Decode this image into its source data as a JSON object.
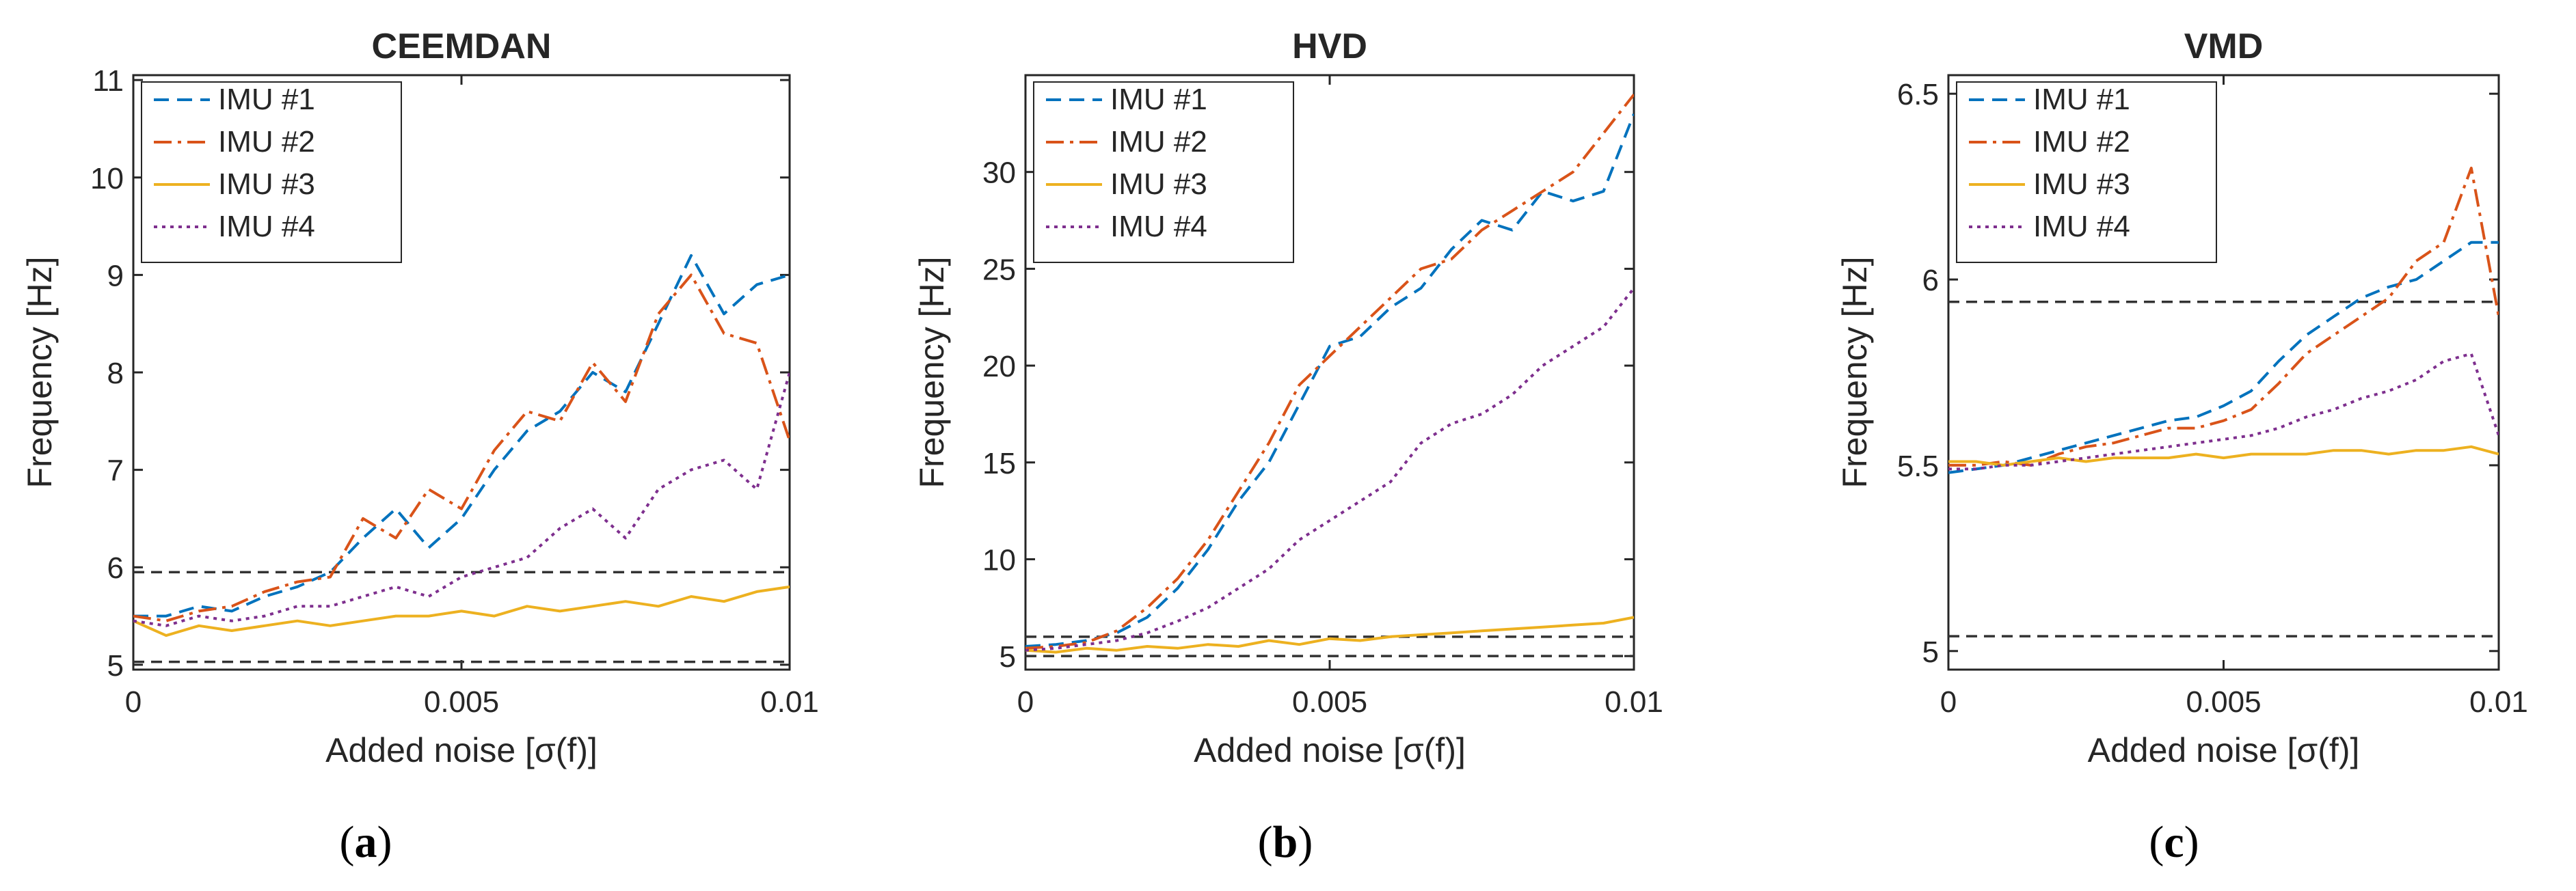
{
  "figure": {
    "captions": [
      {
        "open": "(",
        "letter": "a",
        "close": ")"
      },
      {
        "open": "(",
        "letter": "b",
        "close": ")"
      },
      {
        "open": "(",
        "letter": "c",
        "close": ")"
      }
    ]
  },
  "series_styles": [
    {
      "name": "IMU #1",
      "color": "#0072BD",
      "dash": "dashed"
    },
    {
      "name": "IMU #2",
      "color": "#D95319",
      "dash": "dashdot"
    },
    {
      "name": "IMU #3",
      "color": "#EDB120",
      "dash": "solid"
    },
    {
      "name": "IMU #4",
      "color": "#7E2F8E",
      "dash": "dotted"
    }
  ],
  "chart_data": [
    {
      "type": "line",
      "title": "CEEMDAN",
      "xlabel": "Added noise [σ(f)]",
      "ylabel": "Frequency [Hz]",
      "xlim": [
        0,
        0.01
      ],
      "ylim": [
        4.95,
        11.05
      ],
      "xticks": [
        0,
        0.005,
        0.01
      ],
      "xtick_labels": [
        "0",
        "0.005",
        "0.01"
      ],
      "yticks": [
        5,
        6,
        7,
        8,
        9,
        10,
        11
      ],
      "ytick_labels": [
        "5",
        "6",
        "7",
        "8",
        "9",
        "10",
        "11"
      ],
      "legend": "top-left",
      "grid": false,
      "reference_lines": [
        5.95,
        5.03
      ],
      "series": [
        {
          "name": "IMU #1",
          "x": [
            0,
            0.0005,
            0.001,
            0.0015,
            0.002,
            0.0025,
            0.003,
            0.0035,
            0.004,
            0.0045,
            0.005,
            0.0055,
            0.006,
            0.0065,
            0.007,
            0.0075,
            0.008,
            0.0085,
            0.009,
            0.0095,
            0.01
          ],
          "y": [
            5.5,
            5.5,
            5.6,
            5.55,
            5.7,
            5.8,
            5.95,
            6.3,
            6.6,
            6.2,
            6.5,
            7.0,
            7.4,
            7.6,
            8.0,
            7.8,
            8.5,
            9.2,
            8.6,
            8.9,
            9.0
          ]
        },
        {
          "name": "IMU #2",
          "x": [
            0,
            0.0005,
            0.001,
            0.0015,
            0.002,
            0.0025,
            0.003,
            0.0035,
            0.004,
            0.0045,
            0.005,
            0.0055,
            0.006,
            0.0065,
            0.007,
            0.0075,
            0.008,
            0.0085,
            0.009,
            0.0095,
            0.01
          ],
          "y": [
            5.5,
            5.45,
            5.55,
            5.6,
            5.75,
            5.85,
            5.9,
            6.5,
            6.3,
            6.8,
            6.6,
            7.2,
            7.6,
            7.5,
            8.1,
            7.7,
            8.6,
            9.0,
            8.4,
            8.3,
            7.3
          ]
        },
        {
          "name": "IMU #3",
          "x": [
            0,
            0.0005,
            0.001,
            0.0015,
            0.002,
            0.0025,
            0.003,
            0.0035,
            0.004,
            0.0045,
            0.005,
            0.0055,
            0.006,
            0.0065,
            0.007,
            0.0075,
            0.008,
            0.0085,
            0.009,
            0.0095,
            0.01
          ],
          "y": [
            5.45,
            5.3,
            5.4,
            5.35,
            5.4,
            5.45,
            5.4,
            5.45,
            5.5,
            5.5,
            5.55,
            5.5,
            5.6,
            5.55,
            5.6,
            5.65,
            5.6,
            5.7,
            5.65,
            5.75,
            5.8
          ]
        },
        {
          "name": "IMU #4",
          "x": [
            0,
            0.0005,
            0.001,
            0.0015,
            0.002,
            0.0025,
            0.003,
            0.0035,
            0.004,
            0.0045,
            0.005,
            0.0055,
            0.006,
            0.0065,
            0.007,
            0.0075,
            0.008,
            0.0085,
            0.009,
            0.0095,
            0.01
          ],
          "y": [
            5.45,
            5.4,
            5.5,
            5.45,
            5.5,
            5.6,
            5.6,
            5.7,
            5.8,
            5.7,
            5.9,
            6.0,
            6.1,
            6.4,
            6.6,
            6.3,
            6.8,
            7.0,
            7.1,
            6.8,
            8.0
          ]
        }
      ]
    },
    {
      "type": "line",
      "title": "HVD",
      "xlabel": "Added noise [σ(f)]",
      "ylabel": "Frequency [Hz]",
      "xlim": [
        0,
        0.01
      ],
      "ylim": [
        4.3,
        35
      ],
      "xticks": [
        0,
        0.005,
        0.01
      ],
      "xtick_labels": [
        "0",
        "0.005",
        "0.01"
      ],
      "yticks": [
        5,
        10,
        15,
        20,
        25,
        30
      ],
      "ytick_labels": [
        "5",
        "10",
        "15",
        "20",
        "25",
        "30"
      ],
      "legend": "top-left",
      "grid": false,
      "reference_lines": [
        6.0,
        5.0
      ],
      "series": [
        {
          "name": "IMU #1",
          "x": [
            0,
            0.0005,
            0.001,
            0.0015,
            0.002,
            0.0025,
            0.003,
            0.0035,
            0.004,
            0.0045,
            0.005,
            0.0055,
            0.006,
            0.0065,
            0.007,
            0.0075,
            0.008,
            0.0085,
            0.009,
            0.0095,
            0.01
          ],
          "y": [
            5.5,
            5.6,
            5.8,
            6.2,
            7.0,
            8.5,
            10.5,
            13,
            15,
            18,
            21,
            21.5,
            23,
            24,
            26,
            27.5,
            27,
            29,
            28.5,
            29,
            33
          ]
        },
        {
          "name": "IMU #2",
          "x": [
            0,
            0.0005,
            0.001,
            0.0015,
            0.002,
            0.0025,
            0.003,
            0.0035,
            0.004,
            0.0045,
            0.005,
            0.0055,
            0.006,
            0.0065,
            0.007,
            0.0075,
            0.008,
            0.0085,
            0.009,
            0.0095,
            0.01
          ],
          "y": [
            5.4,
            5.5,
            5.7,
            6.3,
            7.5,
            9,
            11,
            13.5,
            16,
            19,
            20.5,
            22,
            23.5,
            25,
            25.5,
            27,
            28,
            29,
            30,
            32,
            34
          ]
        },
        {
          "name": "IMU #3",
          "x": [
            0,
            0.0005,
            0.001,
            0.0015,
            0.002,
            0.0025,
            0.003,
            0.0035,
            0.004,
            0.0045,
            0.005,
            0.0055,
            0.006,
            0.0065,
            0.007,
            0.0075,
            0.008,
            0.0085,
            0.009,
            0.0095,
            0.01
          ],
          "y": [
            5.3,
            5.2,
            5.4,
            5.3,
            5.5,
            5.4,
            5.6,
            5.5,
            5.8,
            5.6,
            5.9,
            5.8,
            6.0,
            6.1,
            6.2,
            6.3,
            6.4,
            6.5,
            6.6,
            6.7,
            7.0
          ]
        },
        {
          "name": "IMU #4",
          "x": [
            0,
            0.0005,
            0.001,
            0.0015,
            0.002,
            0.0025,
            0.003,
            0.0035,
            0.004,
            0.0045,
            0.005,
            0.0055,
            0.006,
            0.0065,
            0.007,
            0.0075,
            0.008,
            0.0085,
            0.009,
            0.0095,
            0.01
          ],
          "y": [
            5.3,
            5.4,
            5.6,
            5.8,
            6.2,
            6.8,
            7.5,
            8.5,
            9.5,
            11,
            12,
            13,
            14,
            16,
            17,
            17.5,
            18.5,
            20,
            21,
            22,
            24
          ]
        }
      ]
    },
    {
      "type": "line",
      "title": "VMD",
      "xlabel": "Added noise [σ(f)]",
      "ylabel": "Frequency [Hz]",
      "xlim": [
        0,
        0.01
      ],
      "ylim": [
        4.95,
        6.55
      ],
      "xticks": [
        0,
        0.005,
        0.01
      ],
      "xtick_labels": [
        "0",
        "0.005",
        "0.01"
      ],
      "yticks": [
        5,
        5.5,
        6,
        6.5
      ],
      "ytick_labels": [
        "5",
        "5.5",
        "6",
        "6.5"
      ],
      "legend": "top-left",
      "grid": false,
      "reference_lines": [
        5.94,
        5.04
      ],
      "series": [
        {
          "name": "IMU #1",
          "x": [
            0,
            0.0005,
            0.001,
            0.0015,
            0.002,
            0.0025,
            0.003,
            0.0035,
            0.004,
            0.0045,
            0.005,
            0.0055,
            0.006,
            0.0065,
            0.007,
            0.0075,
            0.008,
            0.0085,
            0.009,
            0.0095,
            0.01
          ],
          "y": [
            5.48,
            5.49,
            5.5,
            5.52,
            5.54,
            5.56,
            5.58,
            5.6,
            5.62,
            5.63,
            5.66,
            5.7,
            5.78,
            5.85,
            5.9,
            5.95,
            5.98,
            6.0,
            6.05,
            6.1,
            6.1
          ]
        },
        {
          "name": "IMU #2",
          "x": [
            0,
            0.0005,
            0.001,
            0.0015,
            0.002,
            0.0025,
            0.003,
            0.0035,
            0.004,
            0.0045,
            0.005,
            0.0055,
            0.006,
            0.0065,
            0.007,
            0.0075,
            0.008,
            0.0085,
            0.009,
            0.0095,
            0.01
          ],
          "y": [
            5.5,
            5.5,
            5.51,
            5.5,
            5.53,
            5.55,
            5.56,
            5.58,
            5.6,
            5.6,
            5.62,
            5.65,
            5.72,
            5.8,
            5.85,
            5.9,
            5.95,
            6.05,
            6.1,
            6.3,
            5.9
          ]
        },
        {
          "name": "IMU #3",
          "x": [
            0,
            0.0005,
            0.001,
            0.0015,
            0.002,
            0.0025,
            0.003,
            0.0035,
            0.004,
            0.0045,
            0.005,
            0.0055,
            0.006,
            0.0065,
            0.007,
            0.0075,
            0.008,
            0.0085,
            0.009,
            0.0095,
            0.01
          ],
          "y": [
            5.51,
            5.51,
            5.5,
            5.51,
            5.52,
            5.51,
            5.52,
            5.52,
            5.52,
            5.53,
            5.52,
            5.53,
            5.53,
            5.53,
            5.54,
            5.54,
            5.53,
            5.54,
            5.54,
            5.55,
            5.53
          ]
        },
        {
          "name": "IMU #4",
          "x": [
            0,
            0.0005,
            0.001,
            0.0015,
            0.002,
            0.0025,
            0.003,
            0.0035,
            0.004,
            0.0045,
            0.005,
            0.0055,
            0.006,
            0.0065,
            0.007,
            0.0075,
            0.008,
            0.0085,
            0.009,
            0.0095,
            0.01
          ],
          "y": [
            5.49,
            5.49,
            5.5,
            5.5,
            5.51,
            5.52,
            5.53,
            5.54,
            5.55,
            5.56,
            5.57,
            5.58,
            5.6,
            5.63,
            5.65,
            5.68,
            5.7,
            5.73,
            5.78,
            5.8,
            5.58
          ]
        }
      ]
    }
  ]
}
